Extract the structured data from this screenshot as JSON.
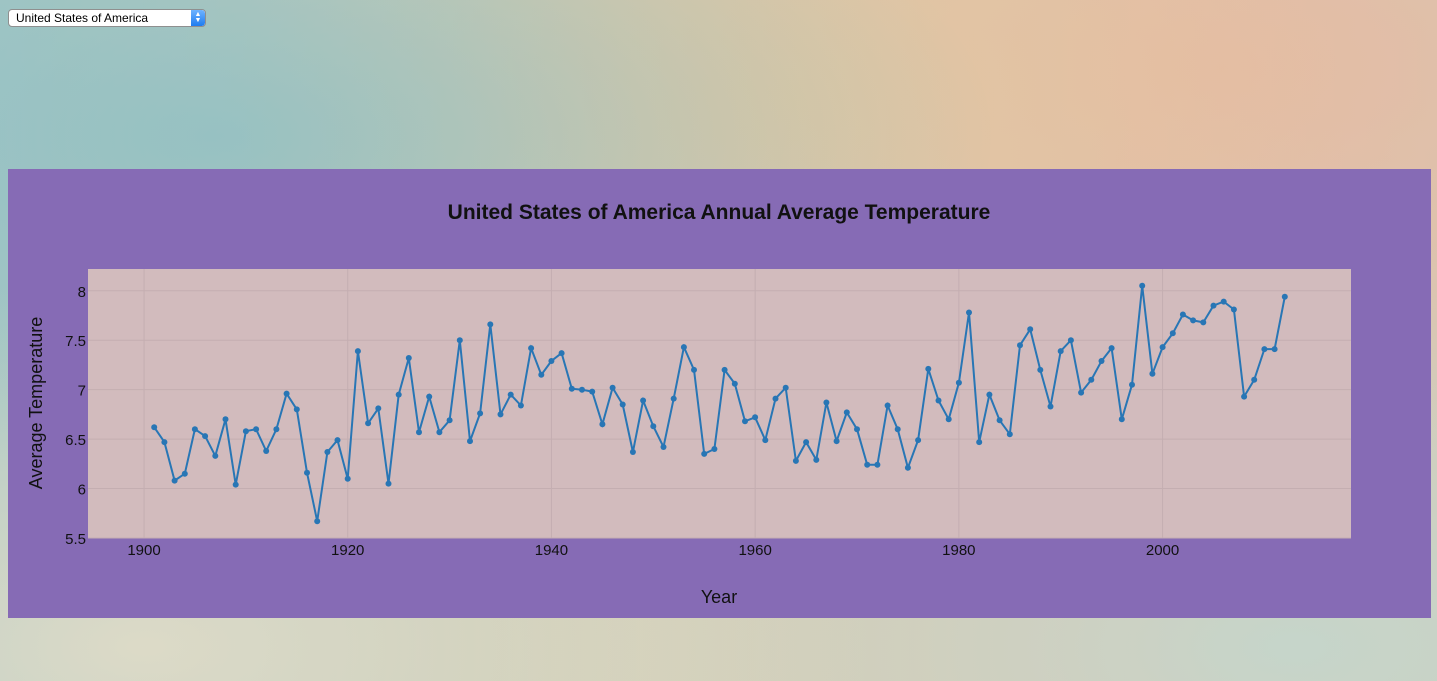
{
  "selector": {
    "selected": "United States of America",
    "arrow_up": "▲",
    "arrow_down": "▼"
  },
  "colors": {
    "panel": "#866bb5",
    "plot_bg": "#d2bbbd",
    "line": "#2876b5",
    "grid": "#c4aeb1"
  },
  "chart_data": {
    "type": "line",
    "title": "United States of America Annual Average Temperature",
    "xlabel": "Year",
    "ylabel": "Average Temperature",
    "xlim": [
      1894.5,
      2018.5
    ],
    "ylim": [
      5.5,
      8.22
    ],
    "xticks": [
      1900,
      1920,
      1940,
      1960,
      1980,
      2000
    ],
    "yticks": [
      5.5,
      6,
      6.5,
      7,
      7.5,
      8
    ],
    "ytick_labels": [
      "5.5",
      "6",
      "6.5",
      "7",
      "7.5",
      "8"
    ],
    "grid": true,
    "series": [
      {
        "x": [
          1901,
          1902,
          1903,
          1904,
          1905,
          1906,
          1907,
          1908,
          1909,
          1910,
          1911,
          1912,
          1913,
          1914,
          1915,
          1916,
          1917,
          1918,
          1919,
          1920,
          1921,
          1922,
          1923,
          1924,
          1925,
          1926,
          1927,
          1928,
          1929,
          1930,
          1931,
          1932,
          1933,
          1934,
          1935,
          1936,
          1937,
          1938,
          1939,
          1940,
          1941,
          1942,
          1943,
          1944,
          1945,
          1946,
          1947,
          1948,
          1949,
          1950,
          1951,
          1952,
          1953,
          1954,
          1955,
          1956,
          1957,
          1958,
          1959,
          1960,
          1961,
          1962,
          1963,
          1964,
          1965,
          1966,
          1967,
          1968,
          1969,
          1970,
          1971,
          1972,
          1973,
          1974,
          1975,
          1976,
          1977,
          1978,
          1979,
          1980,
          1981,
          1982,
          1983,
          1984,
          1985,
          1986,
          1987,
          1988,
          1989,
          1990,
          1991,
          1992,
          1993,
          1994,
          1995,
          1996,
          1997,
          1998,
          1999,
          2000,
          2001,
          2002,
          2003,
          2004,
          2005,
          2006,
          2007,
          2008,
          2009,
          2010,
          2011,
          2012
        ],
        "values": [
          6.62,
          6.47,
          6.08,
          6.15,
          6.6,
          6.53,
          6.33,
          6.7,
          6.04,
          6.58,
          6.6,
          6.38,
          6.6,
          6.96,
          6.8,
          6.16,
          5.67,
          6.37,
          6.49,
          6.1,
          7.39,
          6.66,
          6.81,
          6.05,
          6.95,
          7.32,
          6.57,
          6.93,
          6.57,
          6.69,
          7.5,
          6.48,
          6.76,
          7.66,
          6.75,
          6.95,
          6.84,
          7.42,
          7.15,
          7.29,
          7.37,
          7.01,
          7.0,
          6.98,
          6.65,
          7.02,
          6.85,
          6.37,
          6.89,
          6.63,
          6.42,
          6.91,
          7.43,
          7.2,
          6.35,
          6.4,
          7.2,
          7.06,
          6.68,
          6.72,
          6.49,
          6.91,
          7.02,
          6.28,
          6.47,
          6.29,
          6.87,
          6.48,
          6.77,
          6.6,
          6.24,
          6.24,
          6.84,
          6.6,
          6.21,
          6.49,
          7.21,
          6.89,
          6.7,
          7.07,
          7.78,
          6.47,
          6.95,
          6.69,
          6.55,
          7.45,
          7.61,
          7.2,
          6.83,
          7.39,
          7.5,
          6.97,
          7.1,
          7.29,
          7.42,
          6.7,
          7.05,
          8.05,
          7.16,
          7.43,
          7.57,
          7.76,
          7.7,
          7.68,
          7.85,
          7.89,
          7.81,
          6.93,
          7.1,
          7.41,
          7.41,
          7.94
        ]
      }
    ]
  }
}
